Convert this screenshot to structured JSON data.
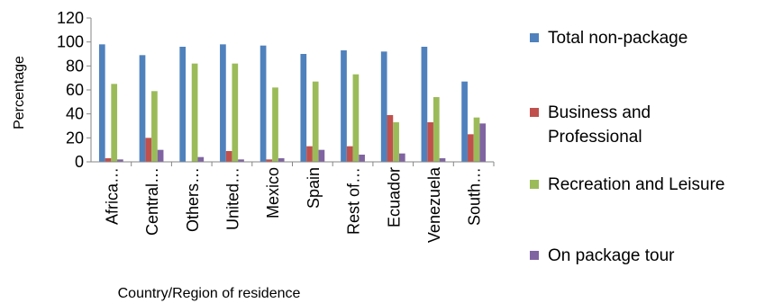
{
  "chart_data": {
    "type": "bar",
    "title": "",
    "xlabel": "Country/Region of residence",
    "ylabel": "Percentage",
    "ylim": [
      0,
      120
    ],
    "yticks": [
      0,
      20,
      40,
      60,
      80,
      100,
      120
    ],
    "grid": false,
    "legend_position": "right",
    "categories": [
      "Africa…",
      "Central…",
      "Others…",
      "United…",
      "Mexico",
      "Spain",
      "Rest of…",
      "Ecuador",
      "Venezuela",
      "South…"
    ],
    "series": [
      {
        "name": "Total non-package",
        "color": "#4F81BD",
        "values": [
          98,
          89,
          96,
          98,
          97,
          90,
          93,
          92,
          96,
          67
        ]
      },
      {
        "name": "Business and Professional",
        "color": "#C0504D",
        "values": [
          3,
          20,
          0,
          9,
          2,
          13,
          13,
          39,
          33,
          23
        ]
      },
      {
        "name": "Recreation and Leisure",
        "color": "#9BBB59",
        "values": [
          65,
          59,
          82,
          82,
          62,
          67,
          73,
          33,
          54,
          37
        ]
      },
      {
        "name": "On package tour",
        "color": "#8064A2",
        "values": [
          2,
          10,
          4,
          2,
          3,
          10,
          6,
          7,
          3,
          32
        ]
      }
    ]
  }
}
